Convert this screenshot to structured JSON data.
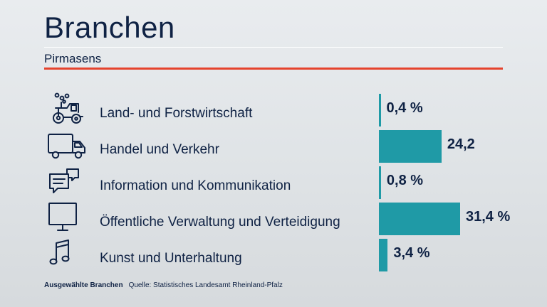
{
  "title": "Branchen",
  "subtitle": "Pirmasens",
  "footer": {
    "label": "Ausgewählte Branchen",
    "source": "Quelle: Statistisches Landesamt Rheinland-Pfalz"
  },
  "colors": {
    "bar": "#1f9aa6",
    "accent_rule": "#e5432d",
    "text": "#0f2244"
  },
  "chart_data": {
    "type": "bar",
    "orientation": "horizontal",
    "title": "Branchen",
    "subtitle": "Pirmasens",
    "categories": [
      "Land- und Forstwirtschaft",
      "Handel und Verkehr",
      "Information und Kommunikation",
      "Öffentliche Verwaltung und Verteidigung",
      "Kunst und Unterhaltung"
    ],
    "values": [
      0.4,
      24.2,
      0.8,
      31.4,
      3.4
    ],
    "value_labels": [
      "0,4 %",
      "24,2",
      "0,8 %",
      "31,4 %",
      "3,4 %"
    ],
    "icons": [
      "tractor-icon",
      "truck-icon",
      "chat-bubbles-icon",
      "monitor-icon",
      "music-note-icon"
    ],
    "xlim": [
      0,
      31.4
    ],
    "grid": false,
    "legend": "none"
  }
}
